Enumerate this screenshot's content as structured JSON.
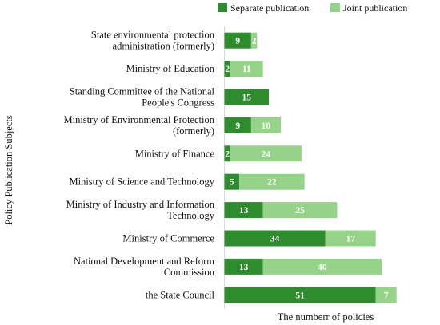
{
  "chart_data": {
    "type": "bar",
    "orientation": "horizontal",
    "stacked": true,
    "categories": [
      [
        "State environmental protection",
        "administration (formerly)"
      ],
      [
        "Ministry of Education"
      ],
      [
        "Standing Committee of the National",
        "People's Congress"
      ],
      [
        "Ministry of Environmental Protection",
        "(formerly)"
      ],
      [
        "Ministry of Finance"
      ],
      [
        "Ministry of Science and Technology"
      ],
      [
        "Ministry of Industry and Information",
        "Technology"
      ],
      [
        "Ministry of Commerce"
      ],
      [
        "National Development and Reform",
        "Commission"
      ],
      [
        "the State Council"
      ]
    ],
    "series": [
      {
        "name": "Separate publication",
        "color": "#2e8b2e",
        "values": [
          9,
          2,
          15,
          9,
          2,
          5,
          13,
          34,
          13,
          51
        ]
      },
      {
        "name": "Joint publication",
        "color": "#95d488",
        "values": [
          2,
          11,
          0,
          10,
          24,
          22,
          25,
          17,
          40,
          7
        ]
      }
    ],
    "xlabel": "The numberr of policies",
    "ylabel": "Policy Publication Subjects",
    "xlim": [
      0,
      60
    ],
    "grid": false,
    "legend_position": "top-right"
  }
}
